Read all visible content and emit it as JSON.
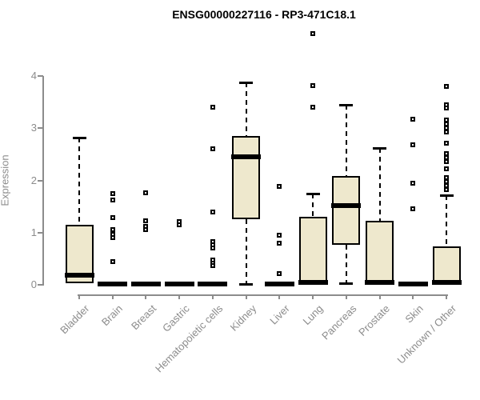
{
  "accent_colors": {
    "box_fill": "#EEE8CD",
    "box_border": "#000000",
    "axis_text": "#8c8c8c",
    "title_color": "#000000"
  },
  "chart_data": {
    "type": "boxplot",
    "title": "ENSG00000227116 - RP3-471C18.1",
    "xlabel": "",
    "ylabel": "Expression",
    "ylim": [
      0,
      4
    ],
    "yticks": [
      0,
      1,
      2,
      3,
      4
    ],
    "grid": false,
    "legend": "none",
    "categories": [
      "Bladder",
      "Brain",
      "Breast",
      "Gastric",
      "Hematopoietic cells",
      "Kidney",
      "Liver",
      "Lung",
      "Pancreas",
      "Prostate",
      "Skin",
      "Unknown / Other"
    ],
    "boxes": [
      {
        "category": "Bladder",
        "whisker_low": 0.03,
        "q1": 0.03,
        "median": 0.18,
        "q3": 1.15,
        "whisker_high": 2.82,
        "outliers": []
      },
      {
        "category": "Brain",
        "whisker_low": 0.02,
        "q1": 0.02,
        "median": 0.02,
        "q3": 0.02,
        "whisker_high": 0.02,
        "outliers": [
          1.75,
          1.63,
          1.28,
          1.05,
          0.97,
          0.9,
          0.45
        ]
      },
      {
        "category": "Breast",
        "whisker_low": 0.02,
        "q1": 0.02,
        "median": 0.02,
        "q3": 0.02,
        "whisker_high": 0.02,
        "outliers": [
          1.77,
          1.22,
          1.12,
          1.06
        ]
      },
      {
        "category": "Gastric",
        "whisker_low": 0.02,
        "q1": 0.02,
        "median": 0.02,
        "q3": 0.02,
        "whisker_high": 0.02,
        "outliers": [
          1.21,
          1.15
        ]
      },
      {
        "category": "Hematopoietic cells",
        "whisker_low": 0.02,
        "q1": 0.02,
        "median": 0.02,
        "q3": 0.02,
        "whisker_high": 0.02,
        "outliers": [
          3.4,
          2.6,
          1.4,
          0.83,
          0.77,
          0.71,
          0.48,
          0.42,
          0.37
        ]
      },
      {
        "category": "Kidney",
        "whisker_low": 0.02,
        "q1": 1.26,
        "median": 2.45,
        "q3": 2.85,
        "whisker_high": 3.88,
        "outliers": []
      },
      {
        "category": "Liver",
        "whisker_low": 0.02,
        "q1": 0.02,
        "median": 0.02,
        "q3": 0.02,
        "whisker_high": 0.02,
        "outliers": [
          1.89,
          0.95,
          0.8,
          0.21
        ]
      },
      {
        "category": "Lung",
        "whisker_low": 0.02,
        "q1": 0.02,
        "median": 0.05,
        "q3": 1.3,
        "whisker_high": 1.74,
        "outliers": [
          4.81,
          3.82,
          3.4
        ]
      },
      {
        "category": "Pancreas",
        "whisker_low": 0.03,
        "q1": 0.77,
        "median": 1.52,
        "q3": 2.08,
        "whisker_high": 3.45,
        "outliers": []
      },
      {
        "category": "Prostate",
        "whisker_low": 0.02,
        "q1": 0.02,
        "median": 0.05,
        "q3": 1.22,
        "whisker_high": 2.62,
        "outliers": []
      },
      {
        "category": "Skin",
        "whisker_low": 0.02,
        "q1": 0.02,
        "median": 0.02,
        "q3": 0.02,
        "whisker_high": 0.02,
        "outliers": [
          3.17,
          2.68,
          1.95,
          1.45
        ]
      },
      {
        "category": "Unknown / Other",
        "whisker_low": 0.02,
        "q1": 0.02,
        "median": 0.05,
        "q3": 0.74,
        "whisker_high": 1.71,
        "outliers": [
          3.8,
          3.45,
          3.38,
          3.15,
          3.08,
          3.0,
          2.92,
          2.71,
          2.52,
          2.44,
          2.36,
          2.22,
          2.06,
          1.97,
          1.9,
          1.83
        ]
      }
    ]
  }
}
